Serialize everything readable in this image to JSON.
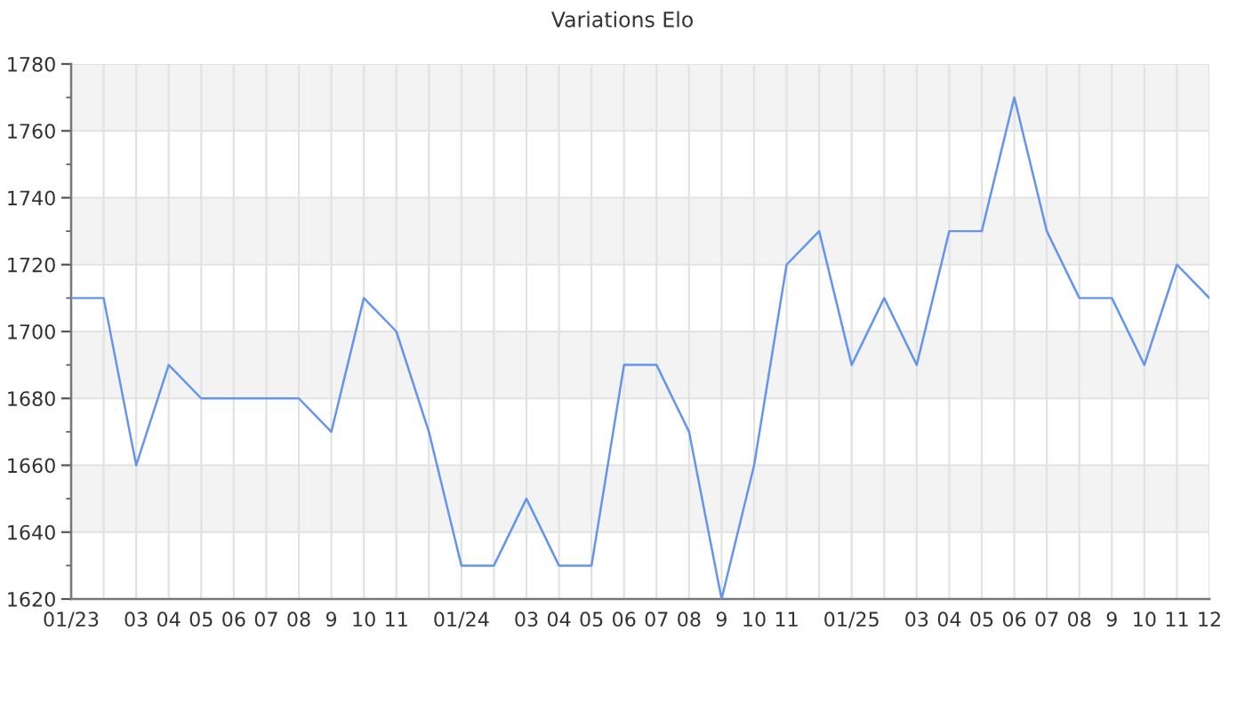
{
  "chart_data": {
    "type": "line",
    "title": "Variations Elo",
    "categories": [
      "01/23",
      null,
      "03",
      "04",
      "05",
      "06",
      "07",
      "08",
      "9",
      "10",
      "11",
      null,
      "01/24",
      null,
      "03",
      "04",
      "05",
      "06",
      "07",
      "08",
      "9",
      "10",
      "11",
      null,
      "01/25",
      null,
      "03",
      "04",
      "05",
      "06",
      "07",
      "08",
      "9",
      "10",
      "11",
      "12"
    ],
    "series": [
      {
        "color": "#6495ed",
        "values": [
          1710,
          1710,
          1660,
          1690,
          1680,
          1680,
          1680,
          1680,
          1670,
          1710,
          1700,
          1670,
          1630,
          1630,
          1650,
          1630,
          1630,
          1690,
          1690,
          1670,
          1620,
          1660,
          1720,
          1730,
          1690,
          1710,
          1690,
          1730,
          1730,
          1770,
          1730,
          1710,
          1710,
          1690,
          1720,
          1710
        ]
      }
    ],
    "ylim": [
      1620,
      1780
    ],
    "yticks": [
      1620,
      {
        "value": 1630,
        "label": null
      },
      1640,
      {
        "value": 1650,
        "label": null
      },
      1660,
      {
        "value": 1670,
        "label": null
      },
      1680,
      {
        "value": 1690,
        "label": null
      },
      1700,
      {
        "value": 1710,
        "label": null
      },
      1720,
      {
        "value": 1730,
        "label": null
      },
      1740,
      {
        "value": 1750,
        "label": null
      },
      1760,
      {
        "value": 1770,
        "label": null
      },
      1780
    ],
    "bands": [
      {
        "axis": "y",
        "from": 1640,
        "to": 1660,
        "color": "#f3f3f3"
      },
      {
        "axis": "y",
        "from": 1680,
        "to": 1700,
        "color": "#f3f3f3"
      },
      {
        "axis": "y",
        "from": 1720,
        "to": 1740,
        "color": "#f3f3f3"
      },
      {
        "axis": "y",
        "from": 1760,
        "to": 1780,
        "color": "#f3f3f3"
      }
    ],
    "grid": true,
    "marker": "none",
    "line_style": "solid"
  }
}
